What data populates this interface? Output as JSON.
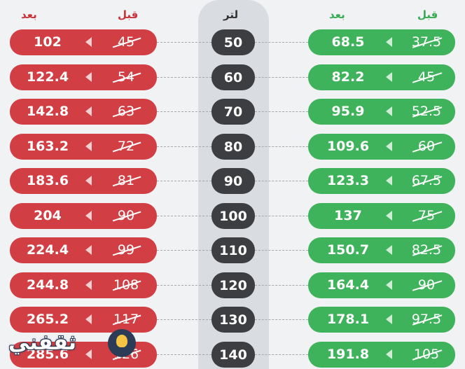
{
  "headers": {
    "left_after": "بعد",
    "left_before": "قبل",
    "center": "لتر",
    "right_after": "بعد",
    "right_before": "قبل"
  },
  "rows": [
    {
      "liter": "50",
      "red_after": "102",
      "red_before": "45",
      "green_after": "68.5",
      "green_before": "37.5"
    },
    {
      "liter": "60",
      "red_after": "122.4",
      "red_before": "54",
      "green_after": "82.2",
      "green_before": "45"
    },
    {
      "liter": "70",
      "red_after": "142.8",
      "red_before": "63",
      "green_after": "95.9",
      "green_before": "52.5"
    },
    {
      "liter": "80",
      "red_after": "163.2",
      "red_before": "72",
      "green_after": "109.6",
      "green_before": "60"
    },
    {
      "liter": "90",
      "red_after": "183.6",
      "red_before": "81",
      "green_after": "123.3",
      "green_before": "67.5"
    },
    {
      "liter": "100",
      "red_after": "204",
      "red_before": "90",
      "green_after": "137",
      "green_before": "75"
    },
    {
      "liter": "110",
      "red_after": "224.4",
      "red_before": "99",
      "green_after": "150.7",
      "green_before": "82.5"
    },
    {
      "liter": "120",
      "red_after": "244.8",
      "red_before": "108",
      "green_after": "164.4",
      "green_before": "90"
    },
    {
      "liter": "130",
      "red_after": "265.2",
      "red_before": "117",
      "green_after": "178.1",
      "green_before": "97.5"
    },
    {
      "liter": "140",
      "red_after": "285.6",
      "red_before": "126",
      "green_after": "191.8",
      "green_before": "105"
    }
  ],
  "watermark": {
    "text": "ثقفني"
  },
  "colors": {
    "red": "#d13f44",
    "green": "#3fb35b",
    "dark": "#3d3e41",
    "center_band": "#d9dce0"
  }
}
